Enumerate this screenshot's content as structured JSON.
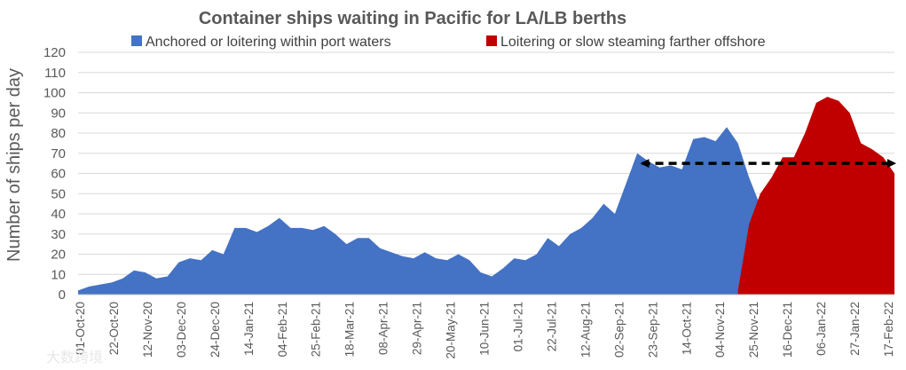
{
  "chart_data": {
    "type": "area",
    "title": "Container ships waiting in Pacific for LA/LB berths",
    "ylabel": "Number of ships per day",
    "xlabel": "",
    "ylim": [
      0,
      120
    ],
    "yticks": [
      0,
      10,
      20,
      30,
      40,
      50,
      60,
      70,
      80,
      90,
      100,
      110,
      120
    ],
    "grid": true,
    "legend_position": "top",
    "x_tick_labels": [
      "01-Oct-20",
      "22-Oct-20",
      "12-Nov-20",
      "03-Dec-20",
      "24-Dec-20",
      "14-Jan-21",
      "04-Feb-21",
      "25-Feb-21",
      "18-Mar-21",
      "08-Apr-21",
      "29-Apr-21",
      "20-May-21",
      "10-Jun-21",
      "01-Jul-21",
      "22-Jul-21",
      "12-Aug-21",
      "02-Sep-21",
      "23-Sep-21",
      "14-Oct-21",
      "04-Nov-21",
      "25-Nov-21",
      "16-Dec-21",
      "06-Jan-22",
      "27-Jan-22",
      "17-Feb-22"
    ],
    "x_range": [
      "2020-10-01",
      "2022-02-24"
    ],
    "series": [
      {
        "name": "Anchored or loitering within port waters",
        "color": "#4472c4",
        "points": [
          [
            "2020-10-01",
            2
          ],
          [
            "2020-10-08",
            4
          ],
          [
            "2020-10-15",
            5
          ],
          [
            "2020-10-22",
            6
          ],
          [
            "2020-10-29",
            8
          ],
          [
            "2020-11-05",
            12
          ],
          [
            "2020-11-12",
            11
          ],
          [
            "2020-11-19",
            8
          ],
          [
            "2020-11-26",
            9
          ],
          [
            "2020-12-03",
            16
          ],
          [
            "2020-12-10",
            18
          ],
          [
            "2020-12-17",
            17
          ],
          [
            "2020-12-24",
            22
          ],
          [
            "2020-12-31",
            20
          ],
          [
            "2021-01-07",
            33
          ],
          [
            "2021-01-14",
            33
          ],
          [
            "2021-01-21",
            31
          ],
          [
            "2021-01-28",
            34
          ],
          [
            "2021-02-04",
            38
          ],
          [
            "2021-02-11",
            33
          ],
          [
            "2021-02-18",
            33
          ],
          [
            "2021-02-25",
            32
          ],
          [
            "2021-03-04",
            34
          ],
          [
            "2021-03-11",
            30
          ],
          [
            "2021-03-18",
            25
          ],
          [
            "2021-03-25",
            28
          ],
          [
            "2021-04-01",
            28
          ],
          [
            "2021-04-08",
            23
          ],
          [
            "2021-04-15",
            21
          ],
          [
            "2021-04-22",
            19
          ],
          [
            "2021-04-29",
            18
          ],
          [
            "2021-05-06",
            21
          ],
          [
            "2021-05-13",
            18
          ],
          [
            "2021-05-20",
            17
          ],
          [
            "2021-05-27",
            20
          ],
          [
            "2021-06-03",
            17
          ],
          [
            "2021-06-10",
            11
          ],
          [
            "2021-06-17",
            9
          ],
          [
            "2021-06-24",
            13
          ],
          [
            "2021-07-01",
            18
          ],
          [
            "2021-07-08",
            17
          ],
          [
            "2021-07-15",
            20
          ],
          [
            "2021-07-22",
            28
          ],
          [
            "2021-07-29",
            24
          ],
          [
            "2021-08-05",
            30
          ],
          [
            "2021-08-12",
            33
          ],
          [
            "2021-08-19",
            38
          ],
          [
            "2021-08-26",
            45
          ],
          [
            "2021-09-02",
            40
          ],
          [
            "2021-09-09",
            55
          ],
          [
            "2021-09-16",
            70
          ],
          [
            "2021-09-23",
            66
          ],
          [
            "2021-09-30",
            63
          ],
          [
            "2021-10-07",
            64
          ],
          [
            "2021-10-14",
            62
          ],
          [
            "2021-10-21",
            77
          ],
          [
            "2021-10-28",
            78
          ],
          [
            "2021-11-04",
            76
          ],
          [
            "2021-11-11",
            83
          ],
          [
            "2021-11-18",
            75
          ],
          [
            "2021-11-25",
            58
          ],
          [
            "2021-12-02",
            44
          ],
          [
            "2021-12-09",
            36
          ],
          [
            "2021-12-16",
            27
          ],
          [
            "2021-12-23",
            23
          ],
          [
            "2021-12-30",
            16
          ],
          [
            "2022-01-06",
            11
          ],
          [
            "2022-01-13",
            9
          ],
          [
            "2022-01-20",
            6
          ],
          [
            "2022-01-27",
            5
          ],
          [
            "2022-02-03",
            4
          ],
          [
            "2022-02-10",
            3
          ],
          [
            "2022-02-17",
            5
          ],
          [
            "2022-02-24",
            6
          ]
        ]
      },
      {
        "name": "Loitering or slow steaming farther offshore",
        "color": "#c00000",
        "points": [
          [
            "2021-11-18",
            2
          ],
          [
            "2021-11-25",
            35
          ],
          [
            "2021-12-02",
            50
          ],
          [
            "2021-12-09",
            58
          ],
          [
            "2021-12-16",
            68
          ],
          [
            "2021-12-23",
            68
          ],
          [
            "2021-12-30",
            80
          ],
          [
            "2022-01-06",
            95
          ],
          [
            "2022-01-13",
            98
          ],
          [
            "2022-01-20",
            96
          ],
          [
            "2022-01-27",
            90
          ],
          [
            "2022-02-03",
            75
          ],
          [
            "2022-02-10",
            72
          ],
          [
            "2022-02-17",
            68
          ],
          [
            "2022-02-24",
            60
          ]
        ]
      }
    ],
    "annotations": [
      {
        "type": "double-arrow",
        "style": "dashed",
        "color": "#000000",
        "from_x": "2021-09-19",
        "to_x": "2022-02-24",
        "y": 65
      }
    ]
  },
  "watermark": "大数跨境"
}
